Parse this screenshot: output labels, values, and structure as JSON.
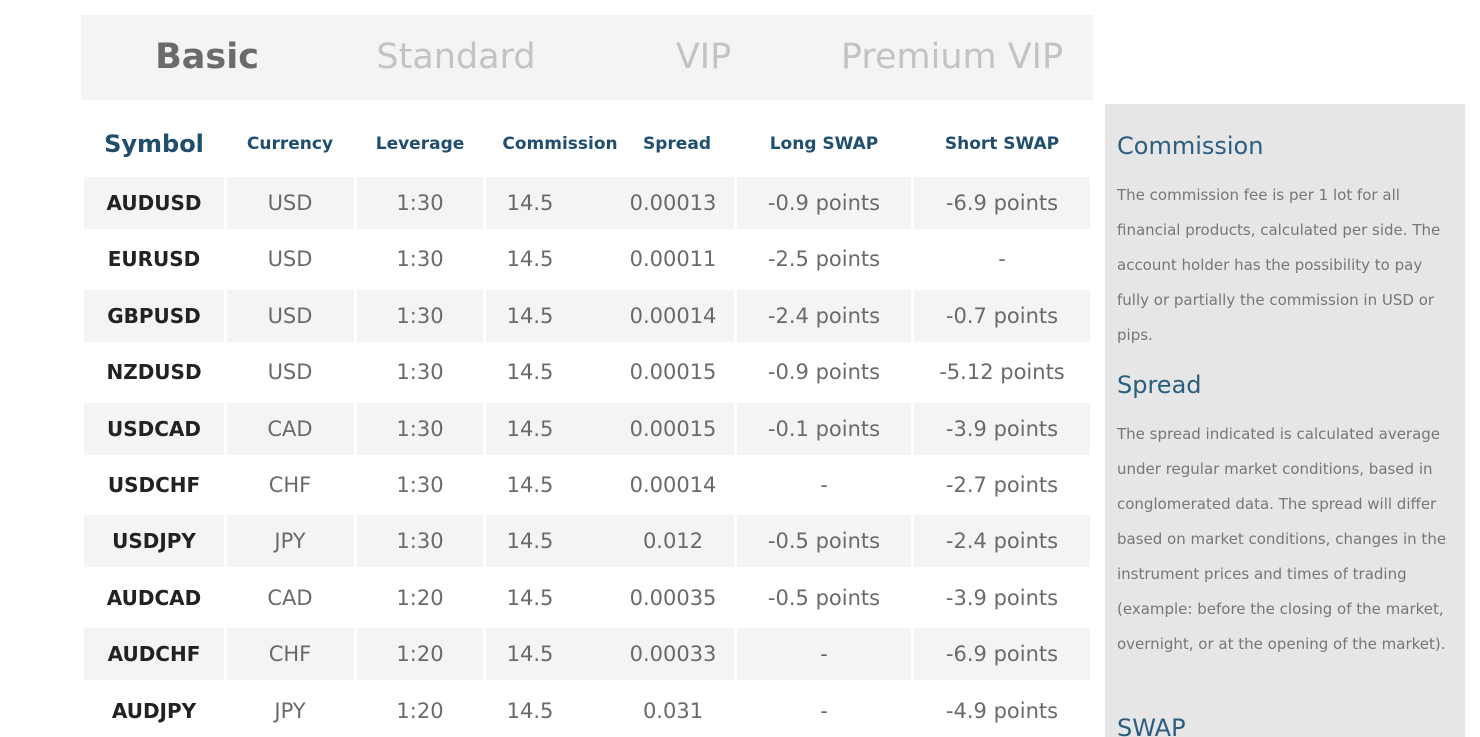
{
  "tabs": [
    {
      "label": "Basic",
      "active": true
    },
    {
      "label": "Standard",
      "active": false
    },
    {
      "label": "VIP",
      "active": false
    },
    {
      "label": "Premium VIP",
      "active": false
    }
  ],
  "table": {
    "headers": [
      "Symbol",
      "Currency",
      "Leverage",
      "Commission",
      "Spread",
      "Long SWAP",
      "Short SWAP"
    ],
    "rows": [
      [
        "AUDUSD",
        "USD",
        "1:30",
        "14.5",
        "0.00013",
        "-0.9 points",
        "-6.9 points"
      ],
      [
        "EURUSD",
        "USD",
        "1:30",
        "14.5",
        "0.00011",
        "-2.5 points",
        "-"
      ],
      [
        "GBPUSD",
        "USD",
        "1:30",
        "14.5",
        "0.00014",
        "-2.4 points",
        "-0.7 points"
      ],
      [
        "NZDUSD",
        "USD",
        "1:30",
        "14.5",
        "0.00015",
        "-0.9 points",
        "-5.12 points"
      ],
      [
        "USDCAD",
        "CAD",
        "1:30",
        "14.5",
        "0.00015",
        "-0.1 points",
        "-3.9 points"
      ],
      [
        "USDCHF",
        "CHF",
        "1:30",
        "14.5",
        "0.00014",
        "-",
        "-2.7 points"
      ],
      [
        "USDJPY",
        "JPY",
        "1:30",
        "14.5",
        "0.012",
        "-0.5 points",
        "-2.4 points"
      ],
      [
        "AUDCAD",
        "CAD",
        "1:20",
        "14.5",
        "0.00035",
        "-0.5 points",
        "-3.9 points"
      ],
      [
        "AUDCHF",
        "CHF",
        "1:20",
        "14.5",
        "0.00033",
        "-",
        "-6.9 points"
      ],
      [
        "AUDJPY",
        "JPY",
        "1:20",
        "14.5",
        "0.031",
        "-",
        "-4.9 points"
      ]
    ]
  },
  "sidebar": {
    "commission": {
      "title": "Commission",
      "text": "The commission fee is per 1 lot for all financial products, calculated per side. The account holder has the possibility to pay fully or partially the commission in USD or pips."
    },
    "spread": {
      "title": "Spread",
      "text": "The spread indicated is calculated average under regular market conditions, based in conglomerated data. The spread will differ based on market conditions, changes in the instrument prices and times of trading (example: before the closing of the market, overnight, or at the opening of the market)."
    },
    "swap": {
      "title": "SWAP"
    }
  }
}
